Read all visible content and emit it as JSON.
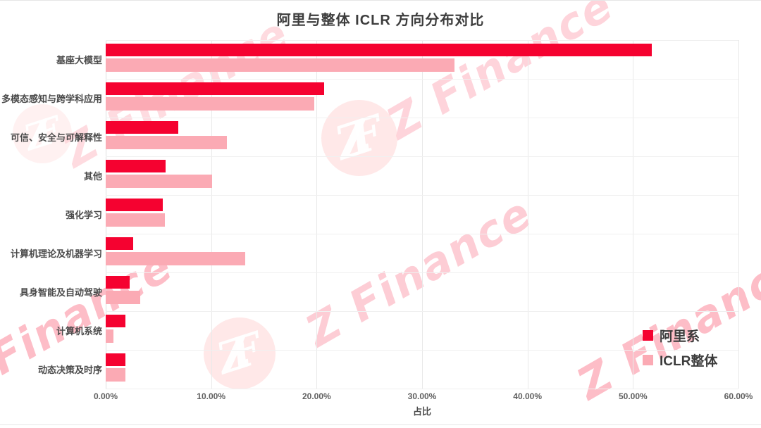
{
  "page": {
    "background": "#ffffff"
  },
  "chart_data": {
    "type": "bar",
    "orientation": "horizontal",
    "title": "阿里与整体 ICLR 方向分布对比",
    "xlabel": "占比",
    "xlim": [
      0,
      60
    ],
    "x_ticks": [
      "0.00%",
      "10.00%",
      "20.00%",
      "30.00%",
      "40.00%",
      "50.00%",
      "60.00%"
    ],
    "grid": true,
    "legend_position": "right-bottom",
    "categories": [
      "基座大模型",
      "多模态感知与跨学科应用",
      "可信、安全与可解释性",
      "其他",
      "强化学习",
      "计算机理论及机器学习",
      "具身智能及自动驾驶",
      "计算机系统",
      "动态决策及时序"
    ],
    "series": [
      {
        "name": "阿里系",
        "color": "#f50230",
        "values": [
          51.8,
          20.7,
          6.9,
          5.7,
          5.4,
          2.6,
          2.3,
          1.9,
          1.9
        ]
      },
      {
        "name": "ICLR整体",
        "color": "#fbaab4",
        "values": [
          33.1,
          19.8,
          11.5,
          10.1,
          5.6,
          13.2,
          3.3,
          0.7,
          1.9
        ]
      }
    ]
  },
  "watermark": {
    "text": "Z Finance",
    "monogram_z": "Z",
    "monogram_f": "F",
    "text_color": "250,90,115",
    "circle_color": "255,214,214"
  }
}
